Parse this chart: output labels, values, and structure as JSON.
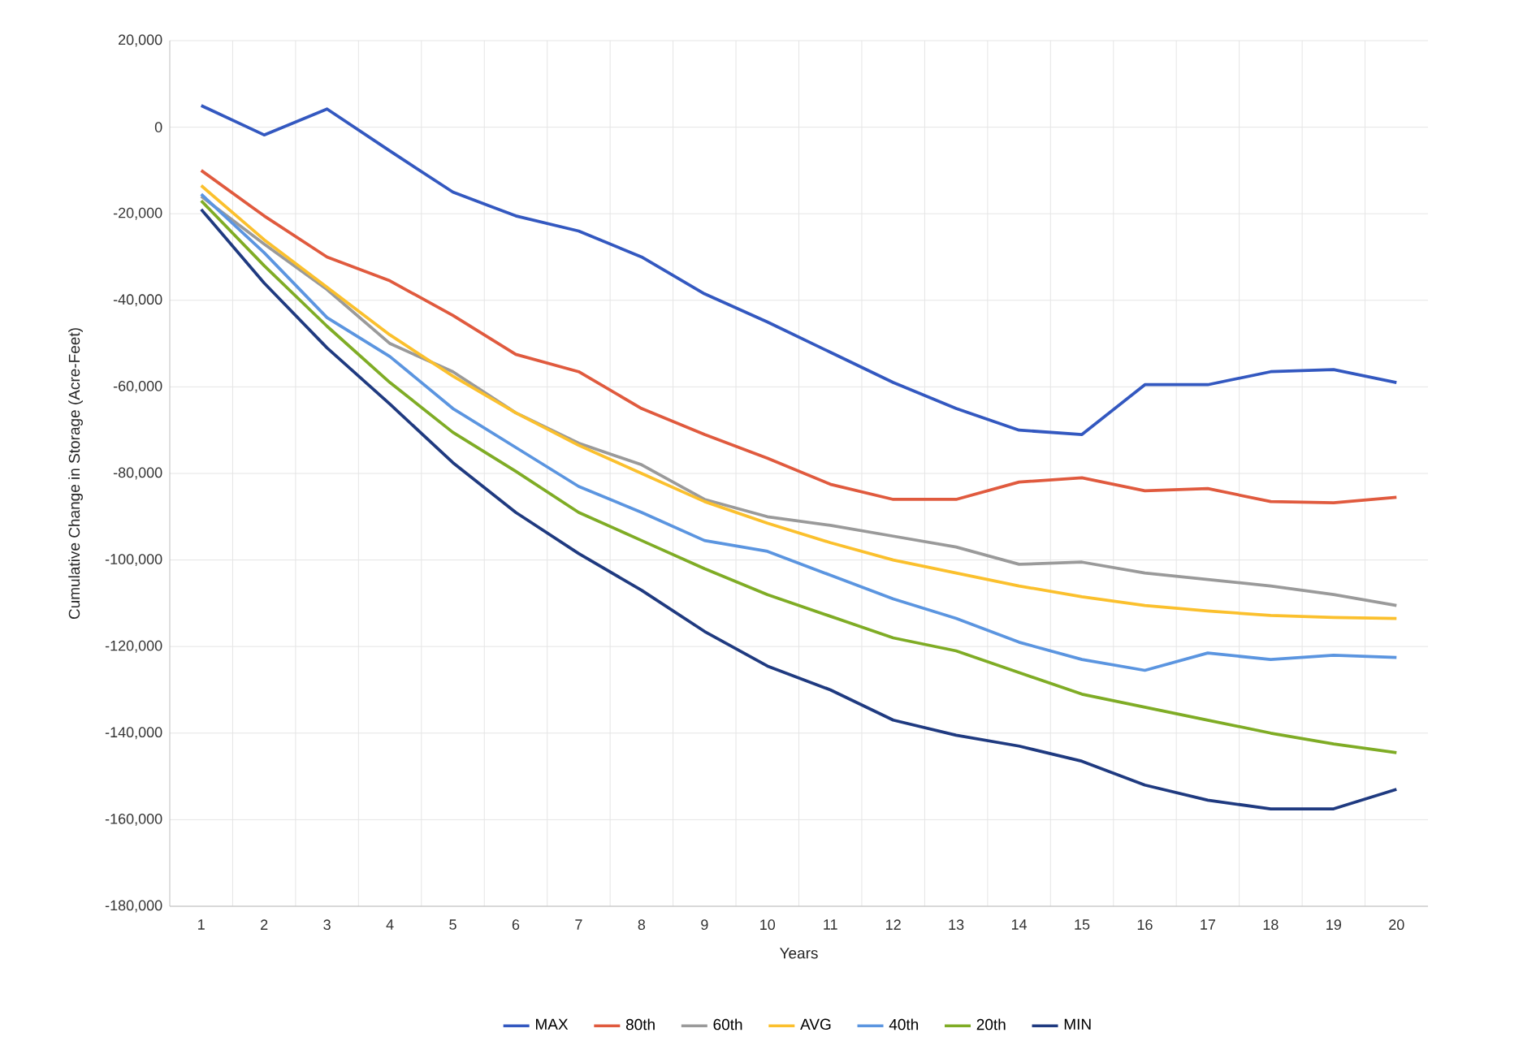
{
  "chart_data": {
    "type": "line",
    "xlabel": "Years",
    "ylabel": "Cumulative Change in Storage (Acre-Feet)",
    "categories": [
      "1",
      "2",
      "3",
      "4",
      "5",
      "6",
      "7",
      "8",
      "9",
      "10",
      "11",
      "12",
      "13",
      "14",
      "15",
      "16",
      "17",
      "18",
      "19",
      "20"
    ],
    "ylim": [
      -180000,
      20000
    ],
    "yticks": [
      {
        "value": -180000,
        "label": "-180,000"
      },
      {
        "value": -160000,
        "label": "-160,000"
      },
      {
        "value": -140000,
        "label": "-140,000"
      },
      {
        "value": -120000,
        "label": "-120,000"
      },
      {
        "value": -100000,
        "label": "-100,000"
      },
      {
        "value": -80000,
        "label": "-80,000"
      },
      {
        "value": -60000,
        "label": "-60,000"
      },
      {
        "value": -40000,
        "label": "-40,000"
      },
      {
        "value": -20000,
        "label": "-20,000"
      },
      {
        "value": 0,
        "label": "0"
      },
      {
        "value": 20000,
        "label": "20,000"
      }
    ],
    "grid": true,
    "legend": "bottom",
    "marker": "none",
    "line_style": "solid",
    "series": [
      {
        "name": "MAX",
        "color": "#3358c0",
        "values": [
          5000,
          -1800,
          4200,
          -5500,
          -15000,
          -20500,
          -24000,
          -30000,
          -38500,
          -45000,
          -52000,
          -59000,
          -65000,
          -70000,
          -71000,
          -59500,
          -59500,
          -56500,
          -56000,
          -59000
        ]
      },
      {
        "name": "80th",
        "color": "#e05a3e",
        "values": [
          -10000,
          -20500,
          -30000,
          -35500,
          -43500,
          -52500,
          -56500,
          -65000,
          -71000,
          -76500,
          -82500,
          -86000,
          -86000,
          -82000,
          -81000,
          -84000,
          -83500,
          -86500,
          -86800,
          -85500
        ]
      },
      {
        "name": "60th",
        "color": "#9a9a9a",
        "values": [
          -16000,
          -27000,
          -37500,
          -50000,
          -56500,
          -66000,
          -73000,
          -78000,
          -86000,
          -90000,
          -92000,
          -94500,
          -97000,
          -101000,
          -100500,
          -103000,
          -104500,
          -106000,
          -108000,
          -110500
        ]
      },
      {
        "name": "AVG",
        "color": "#fbc02d",
        "values": [
          -13500,
          -26000,
          -37000,
          -48000,
          -57500,
          -66000,
          -73500,
          -80000,
          -86500,
          -91500,
          -96000,
          -100000,
          -103000,
          -106000,
          -108500,
          -110500,
          -111800,
          -112800,
          -113300,
          -113500
        ]
      },
      {
        "name": "40th",
        "color": "#5b95e0",
        "values": [
          -15500,
          -29000,
          -44000,
          -53000,
          -65000,
          -74000,
          -83000,
          -89000,
          -95500,
          -98000,
          -103500,
          -109000,
          -113500,
          -119000,
          -123000,
          -125500,
          -121500,
          -123000,
          -122000,
          -122500
        ]
      },
      {
        "name": "20th",
        "color": "#7fac25",
        "values": [
          -17000,
          -32000,
          -46000,
          -59000,
          -70500,
          -79500,
          -89000,
          -95500,
          -102000,
          -108000,
          -113000,
          -118000,
          -121000,
          -126000,
          -131000,
          -134000,
          -137000,
          -140000,
          -142500,
          -144500
        ]
      },
      {
        "name": "MIN",
        "color": "#1f3a80",
        "values": [
          -19000,
          -36000,
          -51000,
          -64000,
          -77500,
          -89000,
          -98500,
          -107000,
          -116500,
          -124500,
          -130000,
          -137000,
          -140500,
          -143000,
          -146500,
          -152000,
          -155500,
          -157500,
          -157500,
          -153000
        ]
      }
    ]
  }
}
